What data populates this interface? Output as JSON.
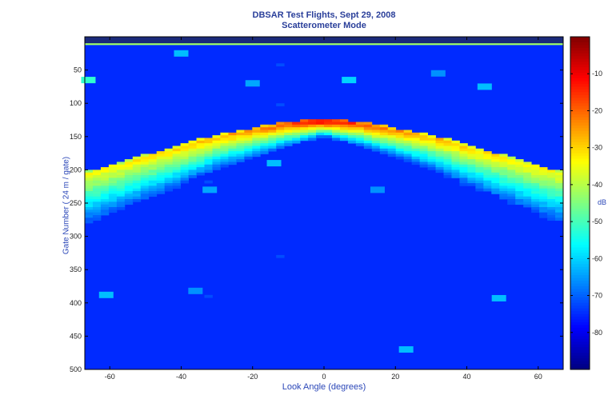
{
  "chart_data": {
    "type": "heatmap",
    "title": "DBSAR Test Flights, Sept 29, 2008",
    "subtitle": "Scatterometer Mode",
    "xlabel": "Look Angle (degrees)",
    "ylabel": "Gate Number ( 24 m / gate)",
    "colorbar_label": "dB",
    "xlim": [
      -67,
      67
    ],
    "ylim": [
      0,
      500
    ],
    "y_reversed": true,
    "colormap": "jet",
    "clim": [
      -90,
      0
    ],
    "x_ticks": [
      -60,
      -40,
      -20,
      0,
      20,
      40,
      60
    ],
    "y_ticks": [
      50,
      100,
      150,
      200,
      250,
      300,
      350,
      400,
      450,
      500
    ],
    "colorbar_ticks": [
      -10,
      -20,
      -30,
      -40,
      -50,
      -60,
      -70,
      -80
    ],
    "surface_curve": {
      "look_angle": [
        -66,
        -60,
        -50,
        -40,
        -30,
        -20,
        -10,
        0,
        10,
        20,
        30,
        40,
        50,
        60,
        66
      ],
      "gate": [
        205,
        195,
        180,
        165,
        150,
        140,
        130,
        127,
        130,
        140,
        150,
        165,
        180,
        195,
        205
      ],
      "peak_dB": [
        -40,
        -38,
        -36,
        -34,
        -32,
        -28,
        -20,
        -13,
        -20,
        -28,
        -32,
        -34,
        -36,
        -38,
        -40
      ]
    },
    "background_dB": -75,
    "top_band": {
      "gate": 11,
      "dB": -42
    },
    "bright_spots": [
      {
        "look_angle": -40,
        "gate": 25,
        "dB": -62
      },
      {
        "look_angle": -66,
        "gate": 65,
        "dB": -52
      },
      {
        "look_angle": -20,
        "gate": 70,
        "dB": -64
      },
      {
        "look_angle": 7,
        "gate": 65,
        "dB": -60
      },
      {
        "look_angle": 32,
        "gate": 55,
        "dB": -66
      },
      {
        "look_angle": 45,
        "gate": 75,
        "dB": -62
      },
      {
        "look_angle": -14,
        "gate": 190,
        "dB": -62
      },
      {
        "look_angle": -32,
        "gate": 230,
        "dB": -64
      },
      {
        "look_angle": 15,
        "gate": 230,
        "dB": -66
      },
      {
        "look_angle": -61,
        "gate": 388,
        "dB": -62
      },
      {
        "look_angle": -36,
        "gate": 382,
        "dB": -66
      },
      {
        "look_angle": 49,
        "gate": 393,
        "dB": -62
      },
      {
        "look_angle": 23,
        "gate": 470,
        "dB": -62
      }
    ]
  },
  "colors": {
    "title": "#2a3f9a",
    "axis_label": "#2b47b8",
    "background_field": "#2c3c9e"
  }
}
